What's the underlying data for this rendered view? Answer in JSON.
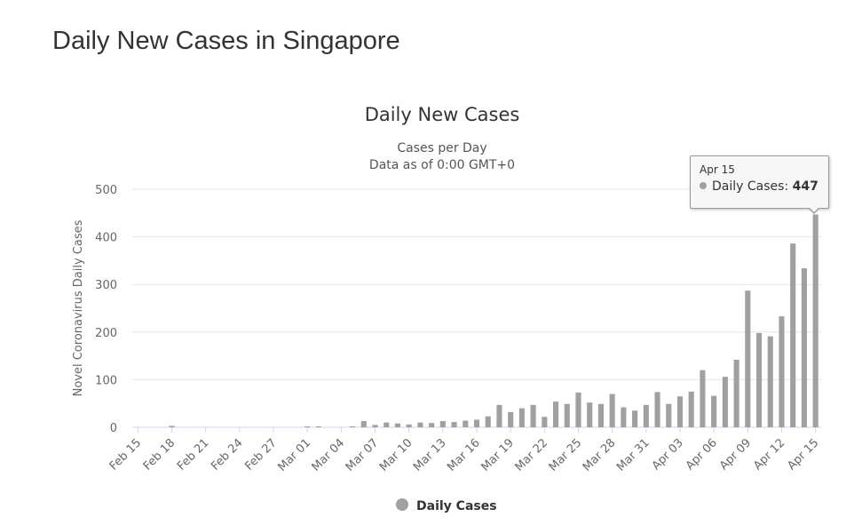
{
  "page": {
    "title": "Daily New Cases in Singapore"
  },
  "colors": {
    "bar": "#a0a0a0",
    "text": "#333333",
    "axis_text": "#666666",
    "grid": "#e6e6e6",
    "axis_line": "#ccd6eb"
  },
  "chart_data": {
    "type": "bar",
    "title": "Daily New Cases",
    "subtitle": [
      "Cases per Day",
      "Data as of 0:00 GMT+0"
    ],
    "xlabel": "",
    "ylabel": "Novel Coronavirus Daily Cases",
    "ylim": [
      0,
      500
    ],
    "yticks": [
      "0",
      "100",
      "200",
      "300",
      "400",
      "500"
    ],
    "legend": {
      "position": "bottom-center",
      "entries": [
        "Daily Cases"
      ]
    },
    "grid": true,
    "categories": [
      "Feb 15",
      "Feb 16",
      "Feb 17",
      "Feb 18",
      "Feb 19",
      "Feb 20",
      "Feb 21",
      "Feb 22",
      "Feb 23",
      "Feb 24",
      "Feb 25",
      "Feb 26",
      "Feb 27",
      "Feb 28",
      "Feb 29",
      "Mar 01",
      "Mar 02",
      "Mar 03",
      "Mar 04",
      "Mar 05",
      "Mar 06",
      "Mar 07",
      "Mar 08",
      "Mar 09",
      "Mar 10",
      "Mar 11",
      "Mar 12",
      "Mar 13",
      "Mar 14",
      "Mar 15",
      "Mar 16",
      "Mar 17",
      "Mar 18",
      "Mar 19",
      "Mar 20",
      "Mar 21",
      "Mar 22",
      "Mar 23",
      "Mar 24",
      "Mar 25",
      "Mar 26",
      "Mar 27",
      "Mar 28",
      "Mar 29",
      "Mar 30",
      "Mar 31",
      "Apr 01",
      "Apr 02",
      "Apr 03",
      "Apr 04",
      "Apr 05",
      "Apr 06",
      "Apr 07",
      "Apr 08",
      "Apr 09",
      "Apr 10",
      "Apr 11",
      "Apr 12",
      "Apr 13",
      "Apr 14",
      "Apr 15"
    ],
    "x_tick_labels": [
      "Feb 15",
      "Feb 18",
      "Feb 21",
      "Feb 24",
      "Feb 27",
      "Mar 01",
      "Mar 04",
      "Mar 07",
      "Mar 10",
      "Mar 13",
      "Mar 16",
      "Mar 19",
      "Mar 22",
      "Mar 25",
      "Mar 28",
      "Mar 31",
      "Apr 03",
      "Apr 06",
      "Apr 09",
      "Apr 12",
      "Apr 15"
    ],
    "series": [
      {
        "name": "Daily Cases",
        "color": "#a0a0a0",
        "values": [
          0,
          0,
          0,
          3,
          0,
          0,
          0,
          0,
          0,
          0,
          0,
          0,
          0,
          0,
          0,
          2,
          2,
          0,
          0,
          2,
          13,
          5,
          10,
          8,
          6,
          10,
          9,
          13,
          11,
          14,
          16,
          23,
          47,
          32,
          40,
          47,
          22,
          54,
          49,
          73,
          52,
          49,
          70,
          42,
          35,
          47,
          74,
          49,
          65,
          75,
          120,
          66,
          106,
          142,
          287,
          198,
          191,
          233,
          386,
          334,
          447
        ]
      }
    ],
    "tooltip": {
      "date": "Apr 15",
      "series": "Daily Cases",
      "value": "447"
    }
  }
}
